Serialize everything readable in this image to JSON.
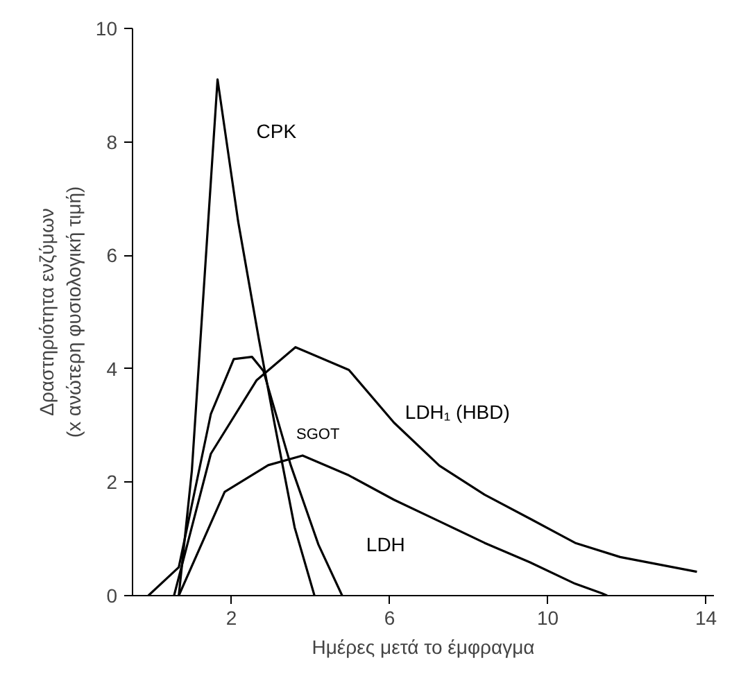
{
  "chart_data": {
    "type": "line",
    "xlabel": "Ημέρες μετά το έμφραγμα",
    "ylabel": "Δραστηριότητα ενζύμων\n(x ανώτερη φυσιολογική τιμή)",
    "xlim": [
      -0.5,
      14.2
    ],
    "ylim": [
      0,
      10
    ],
    "xticks": [
      2,
      6,
      10,
      14
    ],
    "yticks": [
      0,
      2,
      4,
      6,
      8,
      10
    ],
    "grid": false,
    "legend": false,
    "marker": "none",
    "line_style": "solid",
    "series": [
      {
        "name": "CPK",
        "color": "#000000",
        "x": [
          0.67,
          1.0,
          1.48,
          1.65,
          2.17,
          2.7,
          3.1,
          3.6,
          4.1
        ],
        "values": [
          0,
          2.2,
          7.3,
          9.1,
          6.6,
          4.5,
          3.0,
          1.2,
          0
        ]
      },
      {
        "name": "SGOT",
        "color": "#000000",
        "x": [
          -0.1,
          0.67,
          1.48,
          2.06,
          2.52,
          2.81,
          3.5,
          4.2,
          4.8
        ],
        "values": [
          0,
          0.5,
          3.2,
          4.17,
          4.21,
          3.96,
          2.3,
          0.9,
          0
        ]
      },
      {
        "name": "LDH₁ (HBD)",
        "color": "#000000",
        "x": [
          0.55,
          1.48,
          2.64,
          3.62,
          4.97,
          6.11,
          7.26,
          8.4,
          9.54,
          10.69,
          11.83,
          13.77
        ],
        "values": [
          0,
          2.5,
          3.8,
          4.38,
          3.98,
          3.05,
          2.29,
          1.78,
          1.36,
          0.93,
          0.68,
          0.42
        ]
      },
      {
        "name": "LDH",
        "color": "#000000",
        "x": [
          0.67,
          1.83,
          2.93,
          3.8,
          4.97,
          6.11,
          7.26,
          8.4,
          9.54,
          10.69,
          11.37,
          11.5
        ],
        "values": [
          0,
          1.83,
          2.3,
          2.47,
          2.12,
          1.69,
          1.31,
          0.93,
          0.59,
          0.21,
          0.04,
          0
        ]
      }
    ]
  }
}
